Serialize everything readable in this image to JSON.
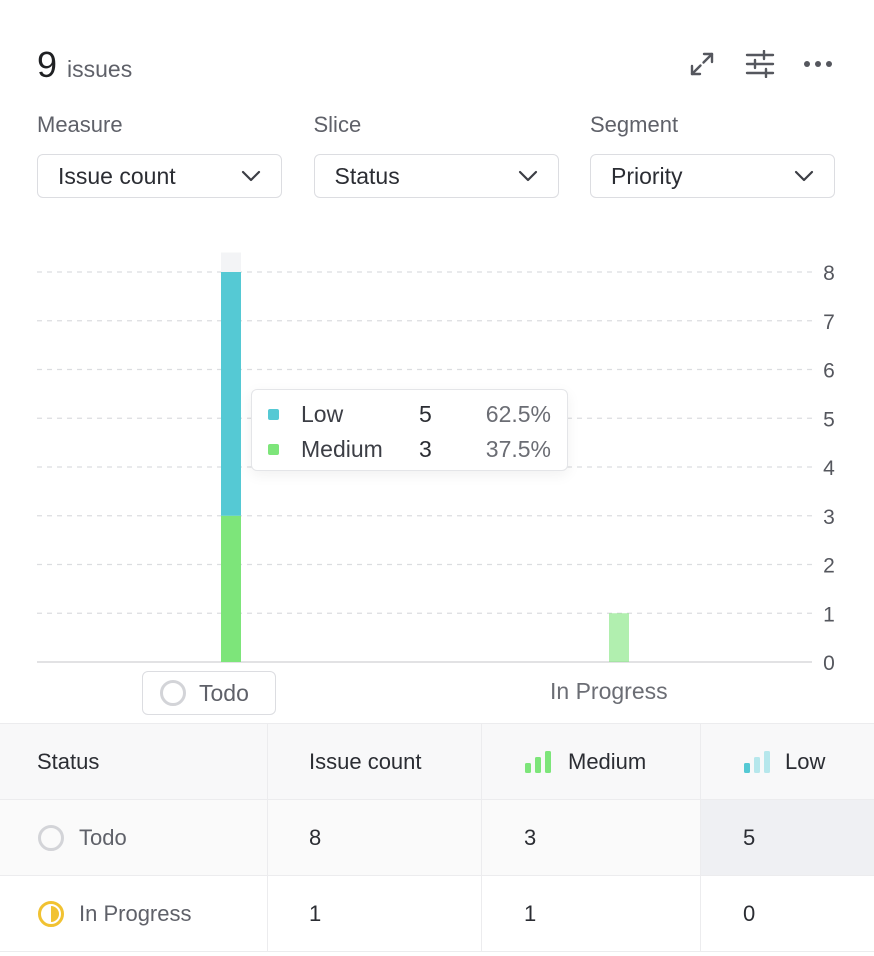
{
  "header": {
    "count": "9",
    "count_label": "issues"
  },
  "toolbar": {
    "icons": [
      "expand-icon",
      "sliders-icon",
      "more-icon"
    ]
  },
  "controls": [
    {
      "label": "Measure",
      "value": "Issue count"
    },
    {
      "label": "Slice",
      "value": "Status"
    },
    {
      "label": "Segment",
      "value": "Priority"
    }
  ],
  "chart_data": {
    "type": "bar",
    "stacked": true,
    "categories": [
      "Todo",
      "In Progress"
    ],
    "series": [
      {
        "name": "Medium",
        "values": [
          3,
          1
        ],
        "color": "#7de57a"
      },
      {
        "name": "Low",
        "values": [
          5,
          0
        ],
        "color": "#55c9d4"
      }
    ],
    "ylim": [
      0,
      8
    ],
    "yticks": [
      "0",
      "1",
      "2",
      "3",
      "4",
      "5",
      "6",
      "7",
      "8"
    ],
    "grid": true,
    "yaxis_position": "right"
  },
  "tooltip": {
    "rows": [
      {
        "name": "Low",
        "value": "5",
        "percent": "62.5%",
        "color": "#55c9d4"
      },
      {
        "name": "Medium",
        "value": "3",
        "percent": "37.5%",
        "color": "#7de57a"
      }
    ]
  },
  "table": {
    "headers": {
      "status": "Status",
      "measure": "Issue count",
      "medium": "Medium",
      "low": "Low"
    },
    "rows": [
      {
        "status": "Todo",
        "count": "8",
        "medium": "3",
        "low": "5"
      },
      {
        "status": "In Progress",
        "count": "1",
        "medium": "1",
        "low": "0"
      }
    ]
  },
  "colors": {
    "medium": "#7de57a",
    "low": "#55c9d4",
    "in_progress": "#f1c232",
    "todo": "#d3d4d8"
  }
}
